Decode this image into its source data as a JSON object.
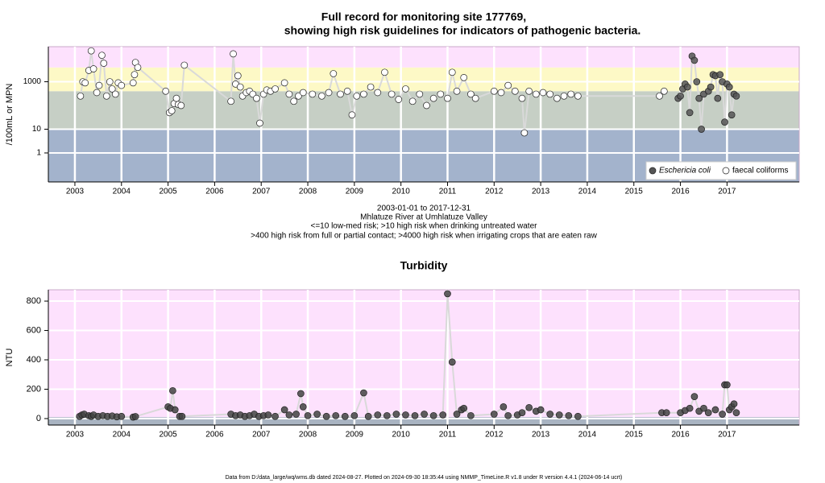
{
  "chart_data": [
    {
      "type": "scatter",
      "title": "Full record for monitoring site 177769,",
      "subtitle": "showing high risk guidelines for indicators of pathogenic bacteria.",
      "ylabel": "/100mL or MPN",
      "log": true,
      "grid": true,
      "legend": "bottom-right",
      "notes": [
        "2003-01-01 to 2017-12-31",
        "Mhlatuze River at Umhlatuze Valley",
        "<=10 low-med risk; >10 high risk when drinking untreated water",
        ">400 high risk from full or partial contact; >4000 high risk when irrigating crops that are eaten raw"
      ],
      "xlim": [
        2002.43,
        2018.55
      ],
      "xticks": [
        2003,
        2004,
        2005,
        2006,
        2007,
        2008,
        2009,
        2010,
        2011,
        2012,
        2013,
        2014,
        2015,
        2016,
        2017
      ],
      "ylim": [
        0.06,
        30000
      ],
      "yticks": [
        1,
        10,
        1000
      ],
      "bands": [
        {
          "from": 0.06,
          "to": 10,
          "color": "#a3b3cc"
        },
        {
          "from": 10,
          "to": 400,
          "color": "#c6cfc5"
        },
        {
          "from": 400,
          "to": 4000,
          "color": "#fdf9c6"
        },
        {
          "from": 4000,
          "to": 30000,
          "color": "#fde1fd"
        }
      ],
      "series": [
        {
          "name": "Eschericia coli",
          "color": "#555555",
          "x": [
            2015.95,
            2016.0,
            2016.05,
            2016.1,
            2016.15,
            2016.2,
            2016.25,
            2016.3,
            2016.35,
            2016.4,
            2016.45,
            2016.5,
            2016.6,
            2016.65,
            2016.7,
            2016.75,
            2016.8,
            2016.85,
            2016.9,
            2016.95,
            2017.0,
            2017.05,
            2017.1,
            2017.15,
            2017.2
          ],
          "values": [
            200,
            250,
            500,
            800,
            600,
            50,
            12000,
            8000,
            1000,
            200,
            10,
            300,
            400,
            600,
            2000,
            1800,
            200,
            2000,
            1000,
            20,
            800,
            600,
            40,
            300,
            250
          ]
        },
        {
          "name": "faecal coliforms",
          "color": "#ffffff",
          "x": [
            2003.12,
            2003.17,
            2003.22,
            2003.3,
            2003.35,
            2003.4,
            2003.47,
            2003.52,
            2003.58,
            2003.62,
            2003.68,
            2003.75,
            2003.8,
            2003.87,
            2003.93,
            2004.0,
            2004.25,
            2004.28,
            2004.3,
            2004.35,
            2004.95,
            2005.03,
            2005.08,
            2005.13,
            2005.18,
            2005.22,
            2005.28,
            2005.35,
            2006.35,
            2006.4,
            2006.45,
            2006.5,
            2006.55,
            2006.6,
            2006.68,
            2006.75,
            2006.82,
            2006.9,
            2006.97,
            2007.05,
            2007.12,
            2007.2,
            2007.3,
            2007.5,
            2007.6,
            2007.7,
            2007.8,
            2007.9,
            2008.1,
            2008.3,
            2008.45,
            2008.55,
            2008.7,
            2008.85,
            2008.95,
            2009.05,
            2009.2,
            2009.35,
            2009.5,
            2009.65,
            2009.8,
            2009.95,
            2010.1,
            2010.25,
            2010.4,
            2010.55,
            2010.7,
            2010.85,
            2011.0,
            2011.1,
            2011.2,
            2011.35,
            2011.5,
            2011.6,
            2012.0,
            2012.15,
            2012.3,
            2012.45,
            2012.6,
            2012.65,
            2012.75,
            2012.9,
            2013.05,
            2013.2,
            2013.35,
            2013.5,
            2013.65,
            2013.8,
            2015.55,
            2015.65
          ],
          "values": [
            250,
            1000,
            900,
            3000,
            20000,
            3500,
            350,
            700,
            13000,
            6000,
            250,
            1000,
            500,
            300,
            900,
            700,
            900,
            2000,
            6500,
            4000,
            400,
            50,
            60,
            120,
            200,
            110,
            100,
            5000,
            150,
            15000,
            800,
            1800,
            600,
            250,
            350,
            400,
            300,
            200,
            18,
            300,
            450,
            400,
            500,
            900,
            300,
            150,
            250,
            350,
            300,
            250,
            350,
            2200,
            300,
            400,
            40,
            250,
            300,
            600,
            350,
            2500,
            300,
            180,
            500,
            150,
            300,
            100,
            200,
            300,
            200,
            2500,
            400,
            1500,
            300,
            200,
            400,
            350,
            700,
            400,
            200,
            7,
            400,
            300,
            350,
            300,
            200,
            250,
            300,
            250,
            250,
            400
          ]
        }
      ]
    },
    {
      "type": "scatter",
      "title": "Turbidity",
      "ylabel": "NTU",
      "grid": true,
      "color": "#444444",
      "xlim": [
        2002.43,
        2018.55
      ],
      "xticks": [
        2003,
        2004,
        2005,
        2006,
        2007,
        2008,
        2009,
        2010,
        2011,
        2012,
        2013,
        2014,
        2015,
        2016,
        2017
      ],
      "ylim": [
        -44,
        877
      ],
      "yticks": [
        0,
        200,
        400,
        600,
        800
      ],
      "bands": [
        {
          "from": -44,
          "to": 10,
          "color": "#a9b4c2"
        },
        {
          "from": 10,
          "to": 877,
          "color": "#fde1fd"
        }
      ],
      "x": [
        2003.1,
        2003.15,
        2003.2,
        2003.3,
        2003.35,
        2003.4,
        2003.5,
        2003.6,
        2003.7,
        2003.8,
        2003.9,
        2004.0,
        2004.25,
        2004.3,
        2005.0,
        2005.05,
        2005.1,
        2005.15,
        2005.25,
        2005.3,
        2006.35,
        2006.45,
        2006.55,
        2006.65,
        2006.75,
        2006.85,
        2006.95,
        2007.05,
        2007.15,
        2007.3,
        2007.5,
        2007.6,
        2007.75,
        2007.85,
        2007.9,
        2008.0,
        2008.2,
        2008.4,
        2008.6,
        2008.8,
        2009.0,
        2009.2,
        2009.3,
        2009.5,
        2009.7,
        2009.9,
        2010.1,
        2010.3,
        2010.5,
        2010.7,
        2010.9,
        2011.0,
        2011.1,
        2011.2,
        2011.3,
        2011.35,
        2011.5,
        2012.0,
        2012.2,
        2012.3,
        2012.5,
        2012.6,
        2012.75,
        2012.9,
        2013.0,
        2013.2,
        2013.4,
        2013.6,
        2013.8,
        2015.6,
        2015.7,
        2016.0,
        2016.1,
        2016.2,
        2016.3,
        2016.4,
        2016.5,
        2016.6,
        2016.75,
        2016.9,
        2016.95,
        2017.0,
        2017.05,
        2017.1,
        2017.15,
        2017.2
      ],
      "values": [
        15,
        25,
        30,
        20,
        15,
        25,
        15,
        20,
        15,
        18,
        12,
        15,
        10,
        14,
        80,
        70,
        190,
        60,
        15,
        15,
        30,
        20,
        25,
        15,
        20,
        30,
        15,
        20,
        25,
        15,
        60,
        25,
        30,
        170,
        80,
        20,
        30,
        15,
        20,
        15,
        20,
        175,
        15,
        25,
        20,
        30,
        25,
        20,
        30,
        20,
        25,
        850,
        385,
        30,
        60,
        70,
        20,
        30,
        80,
        20,
        25,
        40,
        75,
        50,
        60,
        30,
        25,
        20,
        15,
        40,
        40,
        40,
        55,
        70,
        150,
        50,
        70,
        40,
        60,
        30,
        230,
        230,
        60,
        80,
        100,
        40
      ]
    }
  ],
  "footer": "Data from D:/data_large/wq/wms.db dated 2024-08-27. Plotted on 2024-09-30 18:35:44 using NMMP_TimeLine.R v1.8 under R version 4.4.1 (2024-06-14 ucrt)"
}
